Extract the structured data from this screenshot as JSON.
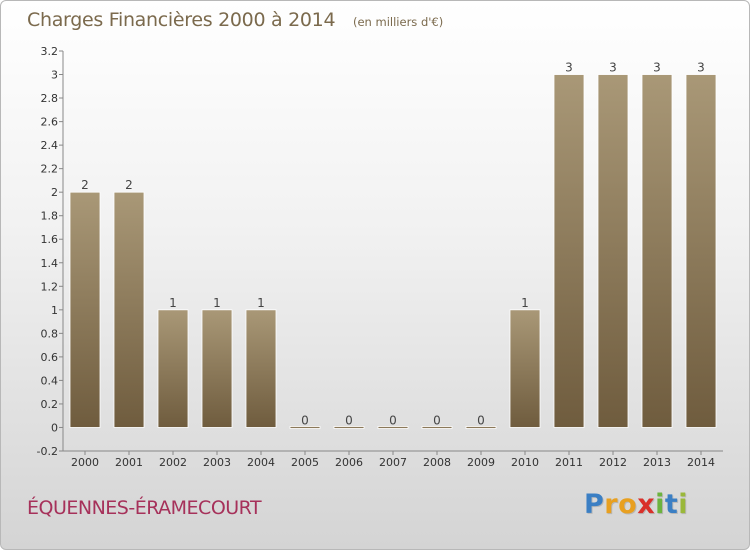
{
  "header": {
    "title": "Charges Financières 2000 à 2014",
    "subtitle": "(en milliers d'€)"
  },
  "footer": {
    "commune": "ÉQUENNES-ÉRAMECOURT",
    "logo_letters": [
      "P",
      "r",
      "o",
      "x",
      "i",
      "t",
      "i"
    ],
    "logo_colors": [
      "#3b7fc4",
      "#e8a020",
      "#e8a020",
      "#d9302a",
      "#6cb33e",
      "#3b7fc4",
      "#9ab83a"
    ]
  },
  "chart_data": {
    "type": "bar",
    "title": "Charges Financières 2000 à 2014",
    "subtitle": "(en milliers d'€)",
    "categories": [
      "2000",
      "2001",
      "2002",
      "2003",
      "2004",
      "2005",
      "2006",
      "2007",
      "2008",
      "2009",
      "2010",
      "2011",
      "2012",
      "2013",
      "2014"
    ],
    "values": [
      2,
      2,
      1,
      1,
      1,
      0,
      0,
      0,
      0,
      0,
      1,
      3,
      3,
      3,
      3
    ],
    "data_labels": [
      "2",
      "2",
      "1",
      "1",
      "1",
      "0",
      "0",
      "0",
      "0",
      "0",
      "1",
      "3",
      "3",
      "3",
      "3"
    ],
    "ylim": [
      -0.2,
      3.2
    ],
    "yticks": [
      -0.2,
      0,
      0.2,
      0.4,
      0.6,
      0.8,
      1,
      1.2,
      1.4,
      1.6,
      1.8,
      2,
      2.2,
      2.4,
      2.6,
      2.8,
      3,
      3.2
    ],
    "ytick_labels": [
      "-0.2",
      "0",
      "0.2",
      "0.4",
      "0.6",
      "0.8",
      "1",
      "1.2",
      "1.4",
      "1.6",
      "1.8",
      "2",
      "2.2",
      "2.4",
      "2.6",
      "2.8",
      "3",
      "3.2"
    ],
    "grid": false,
    "bar_color_top": "#a99877",
    "bar_color_bottom": "#6f5c3e",
    "legend": "none"
  }
}
